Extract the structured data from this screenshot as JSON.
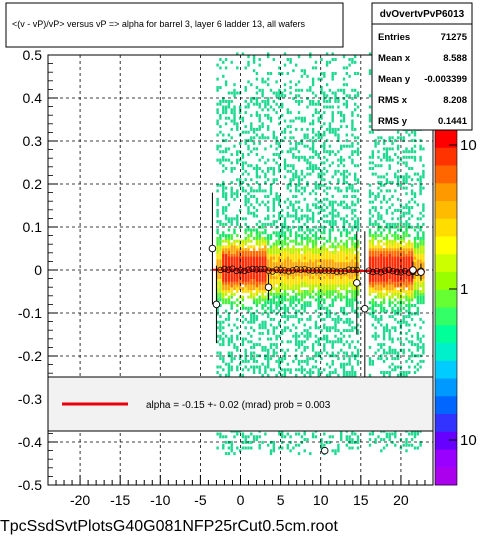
{
  "header": {
    "title": "<(v - vP)/vP> versus   vP => alpha for barrel 3, layer 6 ladder 13, all wafers"
  },
  "stats": {
    "name": "dvOvertvPvP6013",
    "rows": [
      {
        "label": "Entries",
        "value": "71275"
      },
      {
        "label": "Mean x",
        "value": "8.588"
      },
      {
        "label": "Mean y",
        "value": "-0.003399"
      },
      {
        "label": "RMS x",
        "value": "8.208"
      },
      {
        "label": "RMS y",
        "value": "0.1441"
      }
    ]
  },
  "legend": {
    "text": "alpha =   -0.15 +-  0.02 (mrad) prob = 0.003",
    "line_color": "#e8000b"
  },
  "footer": {
    "filename": "TpcSsdSvtPlotsG40G081NFP25rCut0.5cm.root"
  },
  "chart_data": {
    "type": "heatmap",
    "xlim": [
      -24,
      24
    ],
    "ylim": [
      -0.5,
      0.5
    ],
    "xticks": [
      "-20",
      "-15",
      "-10",
      "-5",
      "0",
      "5",
      "10",
      "15",
      "20"
    ],
    "xtick_values": [
      -20,
      -15,
      -10,
      -5,
      0,
      5,
      10,
      15,
      20
    ],
    "yticks": [
      "-0.5",
      "-0.4",
      "-0.3",
      "-0.2",
      "-0.1",
      "0",
      "0.1",
      "0.2",
      "0.3",
      "0.4",
      "0.5"
    ],
    "ytick_values": [
      -0.5,
      -0.4,
      -0.3,
      -0.2,
      -0.1,
      0,
      0.1,
      0.2,
      0.3,
      0.4,
      0.5
    ],
    "grid": true,
    "zscale": "log",
    "colorbar_ticks": [
      "1",
      "10"
    ],
    "colorbar_extra_label": "10",
    "occupied_x_ranges": [
      [
        -3,
        14.5
      ],
      [
        16,
        23
      ]
    ],
    "high_density_x_ranges": [
      [
        -2.5,
        3
      ],
      [
        15.5,
        21.5
      ]
    ],
    "fit_line": {
      "slope": -0.00015,
      "intercept": 0.0,
      "x_range": [
        -3.5,
        23
      ],
      "color": "#e8000b"
    },
    "profile_points": [
      {
        "x": -3.5,
        "y": 0.05,
        "err": 0.13
      },
      {
        "x": -3.0,
        "y": -0.08,
        "err": 0.09
      },
      {
        "x": 3.5,
        "y": -0.04,
        "err": 0.03
      },
      {
        "x": 14.5,
        "y": -0.03,
        "err": 0.12
      },
      {
        "x": 15.5,
        "y": -0.09,
        "err": 0.18
      },
      {
        "x": 21.5,
        "y": 0.0,
        "err": 0.02
      },
      {
        "x": 22.5,
        "y": -0.005,
        "err": 0.02
      },
      {
        "x": 10.5,
        "y": -0.42,
        "err": 0.0
      }
    ]
  }
}
